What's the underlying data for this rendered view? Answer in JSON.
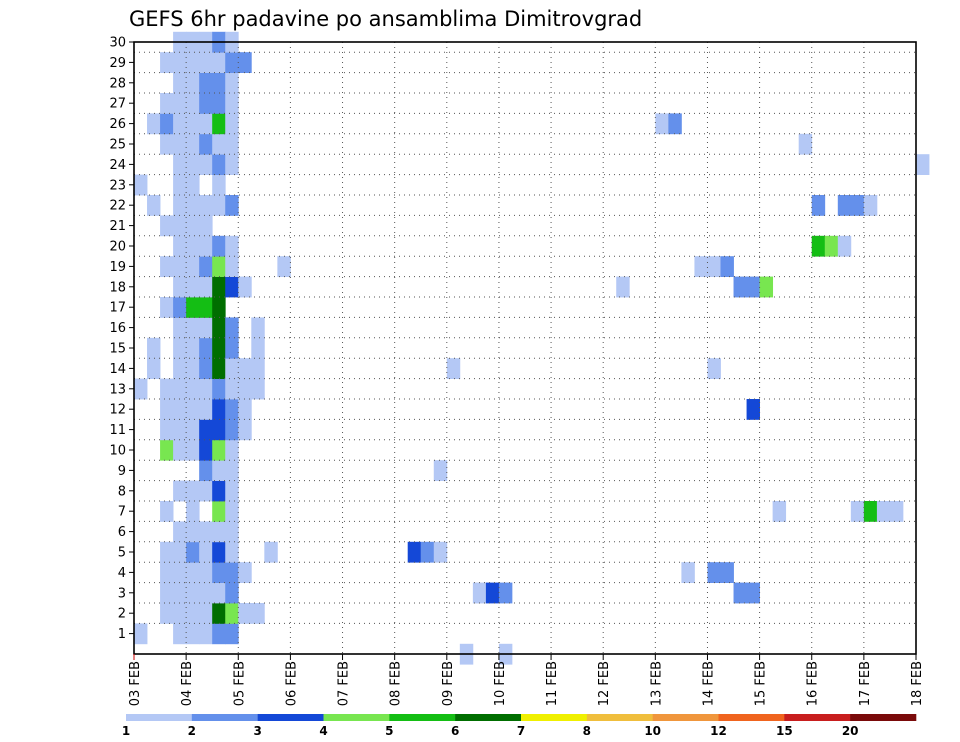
{
  "chart_data": {
    "type": "heatmap",
    "title": "GEFS 6hr padavine po ansamblima Dimitrovgrad",
    "x_tick_labels": [
      "03 FEB",
      "04 FEB",
      "05 FEB",
      "06 FEB",
      "07 FEB",
      "08 FEB",
      "09 FEB",
      "10 FEB",
      "11 FEB",
      "12 FEB",
      "13 FEB",
      "14 FEB",
      "15 FEB",
      "16 FEB",
      "17 FEB",
      "18 FEB"
    ],
    "x_range_days": [
      0,
      15
    ],
    "time_step_hours": 6,
    "y_tick_labels": [
      "1",
      "2",
      "3",
      "4",
      "5",
      "6",
      "7",
      "8",
      "9",
      "10",
      "11",
      "12",
      "13",
      "14",
      "15",
      "16",
      "17",
      "18",
      "19",
      "20",
      "21",
      "22",
      "23",
      "24",
      "25",
      "26",
      "27",
      "28",
      "29",
      "30"
    ],
    "y_range": [
      0,
      30
    ],
    "grid": "dotted",
    "colorbar": {
      "labels": [
        "1",
        "2",
        "3",
        "4",
        "5",
        "6",
        "7",
        "8",
        "10",
        "12",
        "15",
        "20"
      ],
      "colors": [
        "#b4c8f5",
        "#6490eb",
        "#1448d7",
        "#78e650",
        "#14be14",
        "#006e00",
        "#f0f000",
        "#f0be3c",
        "#f0963c",
        "#f0641e",
        "#c81e1e",
        "#7a0a0a"
      ]
    },
    "cells": [
      [
        0,
        1,
        1
      ],
      [
        0,
        13,
        1
      ],
      [
        0,
        23,
        1
      ],
      [
        1,
        14,
        1
      ],
      [
        1,
        15,
        1
      ],
      [
        1,
        22,
        1
      ],
      [
        1,
        26,
        1
      ],
      [
        2,
        2,
        1
      ],
      [
        2,
        3,
        1
      ],
      [
        2,
        4,
        1
      ],
      [
        2,
        5,
        1
      ],
      [
        2,
        7,
        1
      ],
      [
        2,
        10,
        4
      ],
      [
        2,
        11,
        1
      ],
      [
        2,
        12,
        1
      ],
      [
        2,
        13,
        1
      ],
      [
        2,
        17,
        1
      ],
      [
        2,
        19,
        1
      ],
      [
        2,
        21,
        1
      ],
      [
        2,
        25,
        1
      ],
      [
        2,
        26,
        2
      ],
      [
        2,
        27,
        1
      ],
      [
        2,
        29,
        1
      ],
      [
        3,
        1,
        1
      ],
      [
        3,
        2,
        1
      ],
      [
        3,
        3,
        1
      ],
      [
        3,
        4,
        1
      ],
      [
        3,
        5,
        1
      ],
      [
        3,
        6,
        1
      ],
      [
        3,
        8,
        1
      ],
      [
        3,
        10,
        1
      ],
      [
        3,
        11,
        1
      ],
      [
        3,
        12,
        1
      ],
      [
        3,
        13,
        1
      ],
      [
        3,
        14,
        1
      ],
      [
        3,
        15,
        1
      ],
      [
        3,
        16,
        1
      ],
      [
        3,
        17,
        2
      ],
      [
        3,
        18,
        1
      ],
      [
        3,
        19,
        1
      ],
      [
        3,
        20,
        1
      ],
      [
        3,
        21,
        1
      ],
      [
        3,
        22,
        1
      ],
      [
        3,
        23,
        1
      ],
      [
        3,
        24,
        1
      ],
      [
        3,
        25,
        1
      ],
      [
        3,
        26,
        1
      ],
      [
        3,
        27,
        1
      ],
      [
        3,
        28,
        1
      ],
      [
        3,
        29,
        1
      ],
      [
        3,
        30,
        1
      ],
      [
        4,
        1,
        1
      ],
      [
        4,
        2,
        1
      ],
      [
        4,
        3,
        1
      ],
      [
        4,
        4,
        1
      ],
      [
        4,
        5,
        2
      ],
      [
        4,
        6,
        1
      ],
      [
        4,
        7,
        1
      ],
      [
        4,
        8,
        1
      ],
      [
        4,
        10,
        1
      ],
      [
        4,
        11,
        1
      ],
      [
        4,
        12,
        1
      ],
      [
        4,
        13,
        1
      ],
      [
        4,
        14,
        1
      ],
      [
        4,
        15,
        1
      ],
      [
        4,
        16,
        1
      ],
      [
        4,
        17,
        5
      ],
      [
        4,
        18,
        1
      ],
      [
        4,
        19,
        1
      ],
      [
        4,
        20,
        1
      ],
      [
        4,
        21,
        1
      ],
      [
        4,
        22,
        1
      ],
      [
        4,
        23,
        1
      ],
      [
        4,
        24,
        1
      ],
      [
        4,
        25,
        1
      ],
      [
        4,
        26,
        1
      ],
      [
        4,
        27,
        1
      ],
      [
        4,
        28,
        1
      ],
      [
        4,
        29,
        1
      ],
      [
        4,
        30,
        1
      ],
      [
        5,
        1,
        1
      ],
      [
        5,
        2,
        1
      ],
      [
        5,
        3,
        1
      ],
      [
        5,
        4,
        1
      ],
      [
        5,
        5,
        1
      ],
      [
        5,
        6,
        1
      ],
      [
        5,
        8,
        1
      ],
      [
        5,
        9,
        2
      ],
      [
        5,
        10,
        3
      ],
      [
        5,
        11,
        3
      ],
      [
        5,
        12,
        1
      ],
      [
        5,
        13,
        1
      ],
      [
        5,
        14,
        2
      ],
      [
        5,
        15,
        2
      ],
      [
        5,
        16,
        1
      ],
      [
        5,
        17,
        5
      ],
      [
        5,
        18,
        1
      ],
      [
        5,
        19,
        2
      ],
      [
        5,
        20,
        1
      ],
      [
        5,
        21,
        1
      ],
      [
        5,
        22,
        1
      ],
      [
        5,
        24,
        1
      ],
      [
        5,
        25,
        2
      ],
      [
        5,
        26,
        1
      ],
      [
        5,
        27,
        2
      ],
      [
        5,
        28,
        2
      ],
      [
        5,
        29,
        1
      ],
      [
        5,
        30,
        1
      ],
      [
        6,
        1,
        2
      ],
      [
        6,
        2,
        6
      ],
      [
        6,
        3,
        1
      ],
      [
        6,
        4,
        2
      ],
      [
        6,
        5,
        3
      ],
      [
        6,
        6,
        1
      ],
      [
        6,
        7,
        4
      ],
      [
        6,
        8,
        3
      ],
      [
        6,
        9,
        1
      ],
      [
        6,
        10,
        4
      ],
      [
        6,
        11,
        3
      ],
      [
        6,
        12,
        3
      ],
      [
        6,
        13,
        2
      ],
      [
        6,
        14,
        6
      ],
      [
        6,
        15,
        6
      ],
      [
        6,
        16,
        6
      ],
      [
        6,
        17,
        6
      ],
      [
        6,
        18,
        6
      ],
      [
        6,
        19,
        4
      ],
      [
        6,
        20,
        2
      ],
      [
        6,
        22,
        1
      ],
      [
        6,
        23,
        1
      ],
      [
        6,
        24,
        2
      ],
      [
        6,
        25,
        1
      ],
      [
        6,
        26,
        5
      ],
      [
        6,
        27,
        2
      ],
      [
        6,
        28,
        2
      ],
      [
        6,
        29,
        1
      ],
      [
        6,
        30,
        2
      ],
      [
        7,
        1,
        2
      ],
      [
        7,
        2,
        4
      ],
      [
        7,
        3,
        2
      ],
      [
        7,
        4,
        2
      ],
      [
        7,
        5,
        1
      ],
      [
        7,
        6,
        1
      ],
      [
        7,
        7,
        1
      ],
      [
        7,
        8,
        1
      ],
      [
        7,
        9,
        1
      ],
      [
        7,
        10,
        1
      ],
      [
        7,
        11,
        2
      ],
      [
        7,
        12,
        2
      ],
      [
        7,
        13,
        1
      ],
      [
        7,
        14,
        1
      ],
      [
        7,
        15,
        2
      ],
      [
        7,
        16,
        2
      ],
      [
        7,
        18,
        3
      ],
      [
        7,
        19,
        1
      ],
      [
        7,
        20,
        1
      ],
      [
        7,
        22,
        2
      ],
      [
        7,
        24,
        1
      ],
      [
        7,
        25,
        1
      ],
      [
        7,
        26,
        1
      ],
      [
        7,
        27,
        1
      ],
      [
        7,
        28,
        1
      ],
      [
        7,
        29,
        2
      ],
      [
        7,
        30,
        1
      ],
      [
        8,
        2,
        1
      ],
      [
        8,
        4,
        1
      ],
      [
        8,
        11,
        1
      ],
      [
        8,
        12,
        1
      ],
      [
        8,
        13,
        1
      ],
      [
        8,
        14,
        1
      ],
      [
        8,
        18,
        1
      ],
      [
        8,
        29,
        2
      ],
      [
        9,
        2,
        1
      ],
      [
        9,
        13,
        1
      ],
      [
        9,
        14,
        1
      ],
      [
        9,
        15,
        1
      ],
      [
        9,
        16,
        1
      ],
      [
        10,
        5,
        1
      ],
      [
        11,
        19,
        1
      ],
      [
        21,
        5,
        3
      ],
      [
        22,
        5,
        2
      ],
      [
        23,
        5,
        1
      ],
      [
        23,
        9,
        1
      ],
      [
        24,
        14,
        1
      ],
      [
        25,
        0,
        1
      ],
      [
        26,
        3,
        1
      ],
      [
        27,
        3,
        3
      ],
      [
        28,
        3,
        2
      ],
      [
        28,
        0,
        1
      ],
      [
        37,
        18,
        1
      ],
      [
        40,
        26,
        1
      ],
      [
        41,
        26,
        2
      ],
      [
        42,
        4,
        1
      ],
      [
        43,
        19,
        1
      ],
      [
        44,
        19,
        1
      ],
      [
        44,
        14,
        1
      ],
      [
        44,
        4,
        2
      ],
      [
        45,
        19,
        2
      ],
      [
        45,
        4,
        2
      ],
      [
        46,
        3,
        2
      ],
      [
        46,
        18,
        2
      ],
      [
        47,
        3,
        2
      ],
      [
        47,
        12,
        3
      ],
      [
        47,
        18,
        2
      ],
      [
        48,
        18,
        4
      ],
      [
        49,
        7,
        1
      ],
      [
        51,
        25,
        1
      ],
      [
        52,
        20,
        5
      ],
      [
        52,
        22,
        2
      ],
      [
        53,
        20,
        4
      ],
      [
        54,
        20,
        1
      ],
      [
        54,
        22,
        2
      ],
      [
        55,
        7,
        1
      ],
      [
        55,
        22,
        2
      ],
      [
        56,
        7,
        5
      ],
      [
        56,
        22,
        1
      ],
      [
        57,
        7,
        1
      ],
      [
        58,
        7,
        1
      ],
      [
        60,
        24,
        1
      ]
    ]
  }
}
